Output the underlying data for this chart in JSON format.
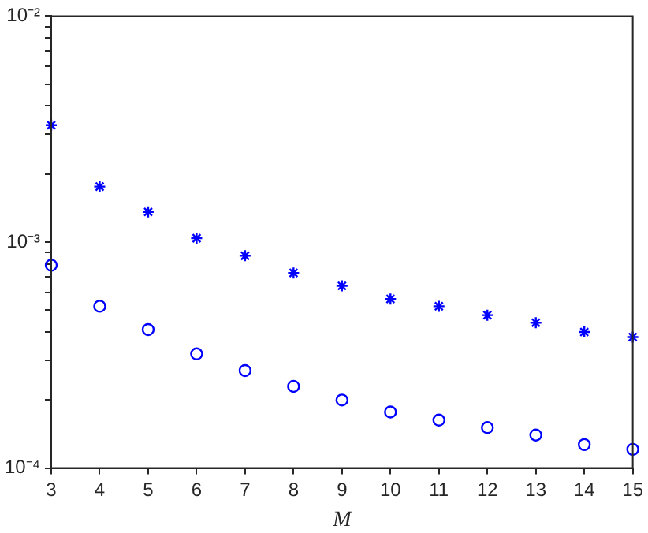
{
  "chart_data": {
    "type": "scatter",
    "xlabel": "M",
    "x": [
      3,
      4,
      5,
      6,
      7,
      8,
      9,
      10,
      11,
      12,
      13,
      14,
      15
    ],
    "series": [
      {
        "color": "#0000ff",
        "marker": "cross",
        "values": [
          0.00329,
          0.00176,
          0.00136,
          0.00104,
          0.00087,
          0.00073,
          0.00064,
          0.00056,
          0.00052,
          0.000475,
          0.00044,
          0.0004,
          0.00038
        ]
      },
      {
        "color": "#0000ff",
        "marker": "circle",
        "values": [
          0.00079,
          0.00052,
          0.00041,
          0.00032,
          0.00027,
          0.00023,
          0.0002,
          0.000177,
          0.000163,
          0.000151,
          0.00014,
          0.000127,
          0.000121
        ]
      }
    ],
    "log": "y",
    "grid": false,
    "legend": false,
    "xlim": [
      3,
      15
    ],
    "xticks": [
      3,
      4,
      5,
      6,
      7,
      8,
      9,
      10,
      11,
      12,
      13,
      14,
      15
    ],
    "ylim": [
      0.0001,
      0.01
    ],
    "yticks": [
      {
        "value": 0.0001,
        "label": "10⁻⁴"
      },
      {
        "value": 0.0002,
        "label": null
      },
      {
        "value": 0.0003,
        "label": null
      },
      {
        "value": 0.0004,
        "label": null
      },
      {
        "value": 0.0005,
        "label": null
      },
      {
        "value": 0.0006,
        "label": null
      },
      {
        "value": 0.0007,
        "label": null
      },
      {
        "value": 0.0008,
        "label": null
      },
      {
        "value": 0.0009,
        "label": null
      },
      {
        "value": 0.001,
        "label": "10⁻³"
      },
      {
        "value": 0.002,
        "label": null
      },
      {
        "value": 0.003,
        "label": null
      },
      {
        "value": 0.004,
        "label": null
      },
      {
        "value": 0.005,
        "label": null
      },
      {
        "value": 0.006,
        "label": null
      },
      {
        "value": 0.007,
        "label": null
      },
      {
        "value": 0.008,
        "label": null
      },
      {
        "value": 0.009,
        "label": null
      },
      {
        "value": 0.01,
        "label": "10⁻²"
      }
    ]
  }
}
